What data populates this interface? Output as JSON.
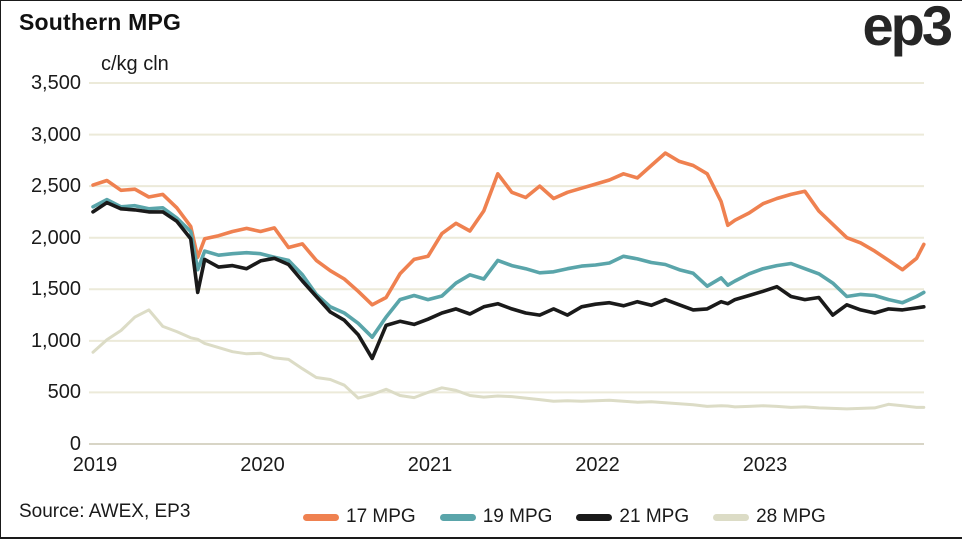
{
  "title": "Southern MPG",
  "logo_text": "ep3",
  "source": "Source: AWEX, EP3",
  "colors": {
    "grid": "#ecead9",
    "grid_zero": "#d8d5c6",
    "text": "#1a1a1a",
    "series_17": "#ef8150",
    "series_19": "#5aa5aa",
    "series_21": "#1a1a1a",
    "series_28": "#dcdcc6"
  },
  "chart_data": {
    "type": "line",
    "title": "Southern MPG",
    "unit_label": "c/kg cln",
    "xlabel": "",
    "ylabel": "c/kg cln",
    "ylim": [
      0,
      3500
    ],
    "grid": "horizontal",
    "legend_position": "bottom",
    "y_ticks": [
      {
        "label": "3,500",
        "value": 3500
      },
      {
        "label": "3,000",
        "value": 3000
      },
      {
        "label": "2,500",
        "value": 2500
      },
      {
        "label": "2,000",
        "value": 2000
      },
      {
        "label": "1,500",
        "value": 1500
      },
      {
        "label": "1,000",
        "value": 1000
      },
      {
        "label": "500",
        "value": 500
      },
      {
        "label": "0",
        "value": 0
      }
    ],
    "x_ticks": [
      {
        "label": "2019",
        "value": 2019
      },
      {
        "label": "2020",
        "value": 2020
      },
      {
        "label": "2021",
        "value": 2021
      },
      {
        "label": "2022",
        "value": 2022
      },
      {
        "label": "2023",
        "value": 2023
      }
    ],
    "x": [
      2019.0,
      2019.083,
      2019.167,
      2019.25,
      2019.333,
      2019.417,
      2019.5,
      2019.583,
      2019.625,
      2019.667,
      2019.75,
      2019.833,
      2019.917,
      2020.0,
      2020.083,
      2020.167,
      2020.25,
      2020.333,
      2020.417,
      2020.5,
      2020.583,
      2020.667,
      2020.75,
      2020.833,
      2020.917,
      2021.0,
      2021.083,
      2021.167,
      2021.25,
      2021.333,
      2021.417,
      2021.5,
      2021.583,
      2021.667,
      2021.75,
      2021.833,
      2021.917,
      2022.0,
      2022.083,
      2022.167,
      2022.25,
      2022.333,
      2022.417,
      2022.5,
      2022.583,
      2022.667,
      2022.75,
      2022.79,
      2022.833,
      2022.917,
      2023.0,
      2023.083,
      2023.167,
      2023.25,
      2023.333,
      2023.417,
      2023.5,
      2023.583,
      2023.667,
      2023.75,
      2023.833,
      2023.917,
      2023.96
    ],
    "series": [
      {
        "name": "17 MPG",
        "color_key": "series_17",
        "stroke_width": 3.6,
        "values": [
          2510,
          2555,
          2460,
          2470,
          2395,
          2420,
          2290,
          2110,
          1810,
          1990,
          2020,
          2060,
          2090,
          2060,
          2095,
          1905,
          1940,
          1780,
          1680,
          1600,
          1480,
          1350,
          1420,
          1650,
          1790,
          1820,
          2040,
          2140,
          2065,
          2260,
          2620,
          2440,
          2390,
          2500,
          2380,
          2440,
          2480,
          2520,
          2560,
          2620,
          2580,
          2700,
          2820,
          2740,
          2700,
          2620,
          2350,
          2120,
          2170,
          2240,
          2330,
          2380,
          2420,
          2450,
          2260,
          2130,
          2000,
          1950,
          1870,
          1780,
          1690,
          1800,
          1935
        ]
      },
      {
        "name": "19 MPG",
        "color_key": "series_19",
        "stroke_width": 3.6,
        "values": [
          2300,
          2370,
          2300,
          2310,
          2280,
          2290,
          2190,
          2060,
          1690,
          1870,
          1830,
          1845,
          1855,
          1845,
          1810,
          1780,
          1640,
          1450,
          1330,
          1270,
          1170,
          1035,
          1230,
          1400,
          1440,
          1400,
          1435,
          1560,
          1640,
          1600,
          1780,
          1730,
          1700,
          1660,
          1670,
          1700,
          1725,
          1735,
          1755,
          1820,
          1795,
          1760,
          1740,
          1690,
          1655,
          1530,
          1610,
          1540,
          1580,
          1650,
          1700,
          1730,
          1750,
          1700,
          1650,
          1560,
          1430,
          1450,
          1440,
          1400,
          1370,
          1430,
          1470
        ]
      },
      {
        "name": "21 MPG",
        "color_key": "series_21",
        "stroke_width": 3.6,
        "values": [
          2250,
          2340,
          2280,
          2270,
          2250,
          2250,
          2160,
          1990,
          1470,
          1790,
          1715,
          1730,
          1700,
          1775,
          1800,
          1740,
          1580,
          1430,
          1280,
          1200,
          1060,
          830,
          1150,
          1190,
          1160,
          1210,
          1270,
          1310,
          1260,
          1330,
          1360,
          1310,
          1270,
          1250,
          1310,
          1250,
          1330,
          1355,
          1370,
          1340,
          1380,
          1345,
          1400,
          1350,
          1300,
          1310,
          1380,
          1360,
          1400,
          1440,
          1480,
          1525,
          1430,
          1400,
          1420,
          1250,
          1350,
          1300,
          1270,
          1310,
          1300,
          1320,
          1330
        ]
      },
      {
        "name": "28 MPG",
        "color_key": "series_28",
        "stroke_width": 3.0,
        "values": [
          890,
          1010,
          1100,
          1230,
          1300,
          1140,
          1090,
          1030,
          1015,
          975,
          935,
          895,
          875,
          880,
          835,
          820,
          730,
          645,
          625,
          570,
          445,
          480,
          530,
          470,
          450,
          500,
          545,
          520,
          470,
          455,
          465,
          460,
          445,
          430,
          415,
          420,
          415,
          420,
          425,
          415,
          405,
          410,
          400,
          390,
          380,
          365,
          370,
          368,
          360,
          365,
          370,
          365,
          355,
          360,
          350,
          345,
          340,
          345,
          350,
          385,
          370,
          355,
          355
        ]
      }
    ]
  }
}
